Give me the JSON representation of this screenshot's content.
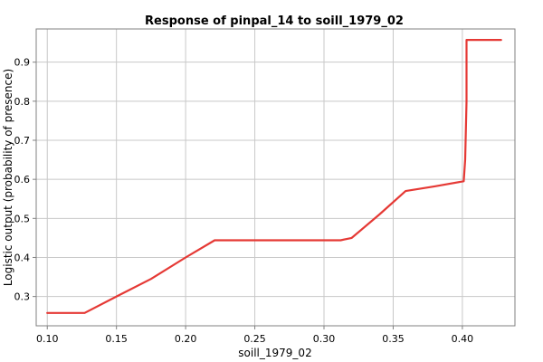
{
  "chart_data": {
    "type": "line",
    "title": "Response of pinpal_14 to soill_1979_02",
    "xlabel": "soill_1979_02",
    "ylabel": "Logistic output (probability of presence)",
    "xlim": [
      0.092,
      0.438
    ],
    "ylim": [
      0.225,
      0.985
    ],
    "x_ticks": [
      0.1,
      0.15,
      0.2,
      0.25,
      0.3,
      0.35,
      0.4
    ],
    "x_tick_labels": [
      "0.10",
      "0.15",
      "0.20",
      "0.25",
      "0.30",
      "0.35",
      "0.40"
    ],
    "y_ticks": [
      0.3,
      0.4,
      0.5,
      0.6,
      0.7,
      0.8,
      0.9
    ],
    "y_tick_labels": [
      "0.3",
      "0.4",
      "0.5",
      "0.6",
      "0.7",
      "0.8",
      "0.9"
    ],
    "grid": true,
    "series": [
      {
        "color": "#e53935",
        "x": [
          0.1,
          0.127,
          0.15,
          0.175,
          0.2,
          0.221,
          0.25,
          0.3,
          0.312,
          0.32,
          0.34,
          0.359,
          0.38,
          0.401,
          0.402,
          0.403,
          0.403,
          0.428
        ],
        "y": [
          0.258,
          0.258,
          0.3,
          0.345,
          0.4,
          0.444,
          0.444,
          0.444,
          0.444,
          0.45,
          0.51,
          0.57,
          0.582,
          0.595,
          0.65,
          0.8,
          0.957,
          0.957
        ]
      }
    ]
  }
}
